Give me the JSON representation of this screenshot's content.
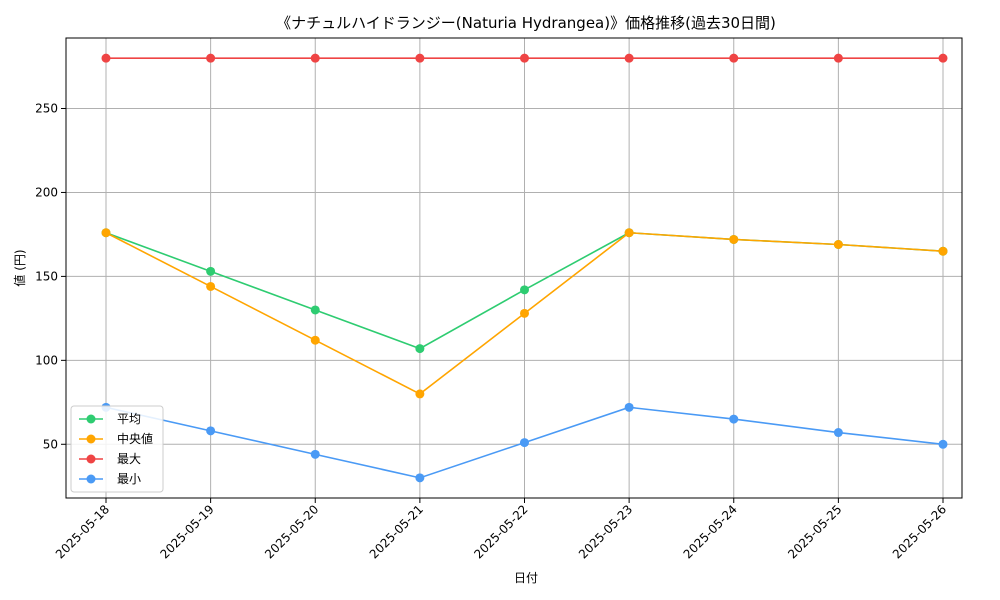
{
  "chart_data": {
    "type": "line",
    "title": "《ナチュルハイドランジー(Naturia Hydrangea)》価格推移(過去30日間)",
    "xlabel": "日付",
    "ylabel": "値 (円)",
    "categories": [
      "2025-05-18",
      "2025-05-19",
      "2025-05-20",
      "2025-05-21",
      "2025-05-22",
      "2025-05-23",
      "2025-05-24",
      "2025-05-25",
      "2025-05-26"
    ],
    "ylim": [
      18,
      292
    ],
    "yticks": [
      50,
      100,
      150,
      200,
      250
    ],
    "grid": true,
    "legend_position": "lower-left",
    "series": [
      {
        "name": "平均",
        "color": "#2ecc71",
        "values": [
          176,
          153,
          130,
          107,
          142,
          176,
          172,
          169,
          165
        ]
      },
      {
        "name": "中央値",
        "color": "#ffa500",
        "values": [
          176,
          144,
          112,
          80,
          128,
          176,
          172,
          169,
          165
        ]
      },
      {
        "name": "最大",
        "color": "#ef4444",
        "values": [
          280,
          280,
          280,
          280,
          280,
          280,
          280,
          280,
          280
        ]
      },
      {
        "name": "最小",
        "color": "#4a9af5",
        "values": [
          72,
          58,
          44,
          30,
          51,
          72,
          65,
          57,
          50
        ]
      }
    ]
  }
}
